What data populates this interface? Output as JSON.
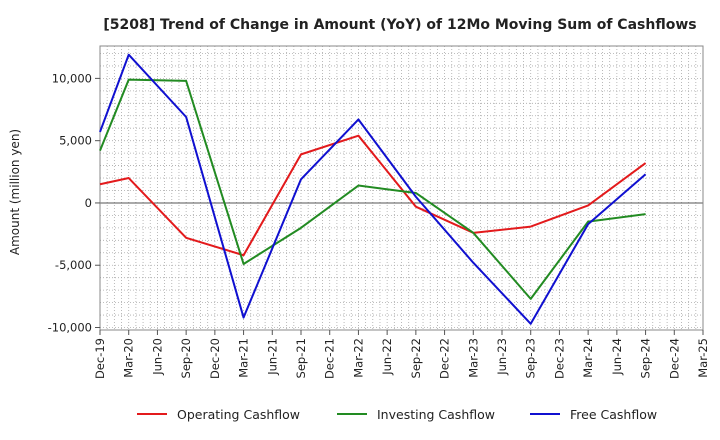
{
  "chart_data": {
    "type": "line",
    "title": "[5208]  Trend of Change in Amount (YoY) of 12Mo Moving Sum of Cashflows",
    "xlabel": "",
    "ylabel": "Amount (million yen)",
    "ylim": [
      -10200,
      12600
    ],
    "yticks": [
      -10000,
      -5000,
      0,
      5000,
      10000
    ],
    "ytick_labels": [
      "-10,000",
      "-5,000",
      "0",
      "5,000",
      "10,000"
    ],
    "grid": true,
    "legend_position": "bottom-center",
    "categories": [
      "Dec-19",
      "Mar-20",
      "Jun-20",
      "Sep-20",
      "Dec-20",
      "Mar-21",
      "Jun-21",
      "Sep-21",
      "Dec-21",
      "Mar-22",
      "Jun-22",
      "Sep-22",
      "Dec-22",
      "Mar-23",
      "Jun-23",
      "Sep-23",
      "Dec-23",
      "Mar-24",
      "Jun-24",
      "Sep-24",
      "Dec-24",
      "Mar-25"
    ],
    "series": [
      {
        "name": "Operating Cashflow",
        "color": "#e31a1c",
        "values": [
          1500,
          2000,
          null,
          -2800,
          null,
          -4200,
          null,
          3900,
          null,
          5400,
          null,
          -300,
          null,
          -2400,
          null,
          -1900,
          null,
          -200,
          null,
          3200,
          null,
          null
        ]
      },
      {
        "name": "Investing Cashflow",
        "color": "#228b22",
        "values": [
          4200,
          9900,
          null,
          9800,
          null,
          -4900,
          null,
          -2000,
          null,
          1400,
          null,
          800,
          null,
          -2400,
          null,
          -7700,
          null,
          -1500,
          null,
          -900,
          null,
          null
        ]
      },
      {
        "name": "Free Cashflow",
        "color": "#1010d0",
        "values": [
          5700,
          11900,
          null,
          6900,
          null,
          -9200,
          null,
          1900,
          null,
          6700,
          null,
          500,
          null,
          -4800,
          null,
          -9700,
          null,
          -1700,
          null,
          2300,
          null,
          null
        ]
      }
    ]
  }
}
